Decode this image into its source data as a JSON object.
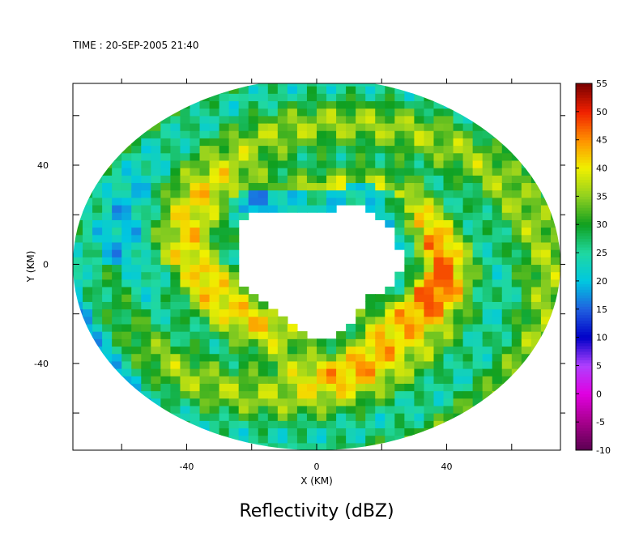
{
  "chart_data": {
    "type": "heatmap",
    "timestamp": "TIME : 20-SEP-2005 21:40",
    "title": "Reflectivity (dBZ)",
    "xlabel": "X (KM)",
    "ylabel": "Y (KM)",
    "xlim": [
      -75,
      75
    ],
    "ylim": [
      -75,
      73
    ],
    "x_ticks": [
      -40,
      0,
      40
    ],
    "x_tick_labels": [
      "-40",
      "0",
      "40"
    ],
    "x_minor_ticks": [
      -60,
      -40,
      -20,
      0,
      20,
      40,
      60
    ],
    "y_ticks": [
      -40,
      0,
      40
    ],
    "y_tick_labels": [
      "-40",
      "0",
      "40"
    ],
    "y_minor_ticks": [
      -60,
      -40,
      -20,
      0,
      20,
      40,
      60
    ],
    "radar_coverage_radius_km": 75,
    "eye": {
      "center_x": 0,
      "center_y": 0,
      "radius_km": 27
    },
    "eyewall_max": {
      "angle_deg": -45,
      "value_dbz": 48
    },
    "colorbar": {
      "min": -10,
      "max": 55,
      "ticks": [
        55,
        50,
        45,
        40,
        35,
        30,
        25,
        20,
        15,
        10,
        5,
        0,
        -5,
        -10
      ],
      "tick_labels": [
        "55",
        "50",
        "45",
        "40",
        "35",
        "30",
        "25",
        "20",
        "15",
        "10",
        "5",
        "0",
        "-5",
        "-10"
      ],
      "colors": [
        {
          "value": -10,
          "color": "#5a0050"
        },
        {
          "value": -5,
          "color": "#a6008c"
        },
        {
          "value": 0,
          "color": "#e000e0"
        },
        {
          "value": 5,
          "color": "#b040ff"
        },
        {
          "value": 10,
          "color": "#0000c8"
        },
        {
          "value": 15,
          "color": "#2060e0"
        },
        {
          "value": 20,
          "color": "#00c8e0"
        },
        {
          "value": 25,
          "color": "#20d8a0"
        },
        {
          "value": 30,
          "color": "#10a020"
        },
        {
          "value": 35,
          "color": "#90d020"
        },
        {
          "value": 40,
          "color": "#f0f000"
        },
        {
          "value": 45,
          "color": "#ff9000"
        },
        {
          "value": 50,
          "color": "#f02000"
        },
        {
          "value": 55,
          "color": "#780000"
        }
      ]
    },
    "grid": false
  }
}
